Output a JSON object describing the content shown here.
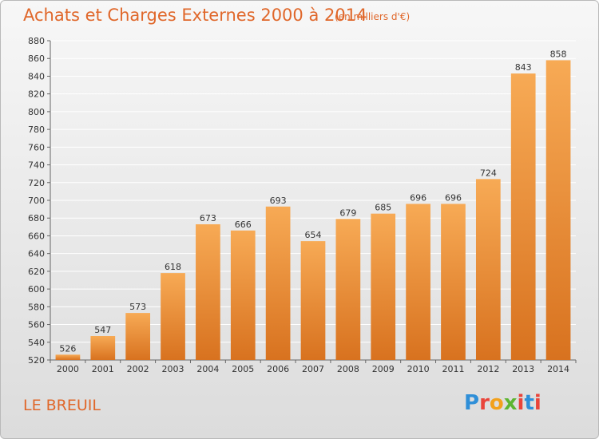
{
  "title": "Achats et Charges Externes 2000 à 2014",
  "unit": "(en milliers d'€)",
  "place": "LE BREUIL",
  "logo": {
    "text": "Proxiti",
    "letter_colors": [
      "#2f8fd8",
      "#e9443a",
      "#f2a11c",
      "#5cb531",
      "#e9443a",
      "#2f8fd8",
      "#e9443a"
    ]
  },
  "colors": {
    "bar_top": "#f7aa55",
    "bar_bottom": "#d8721f",
    "grid": "#ffffff",
    "title": "#e0672a"
  },
  "chart_data": {
    "type": "bar",
    "categories": [
      "2000",
      "2001",
      "2002",
      "2003",
      "2004",
      "2005",
      "2006",
      "2007",
      "2008",
      "2009",
      "2010",
      "2011",
      "2012",
      "2013",
      "2014"
    ],
    "values": [
      526,
      547,
      573,
      618,
      673,
      666,
      693,
      654,
      679,
      685,
      696,
      696,
      724,
      843,
      858
    ],
    "ylim": [
      520,
      880
    ],
    "yticks": [
      520,
      540,
      560,
      580,
      600,
      620,
      640,
      660,
      680,
      700,
      720,
      740,
      760,
      780,
      800,
      820,
      840,
      860,
      880
    ],
    "grid": true,
    "data_labels": true
  }
}
